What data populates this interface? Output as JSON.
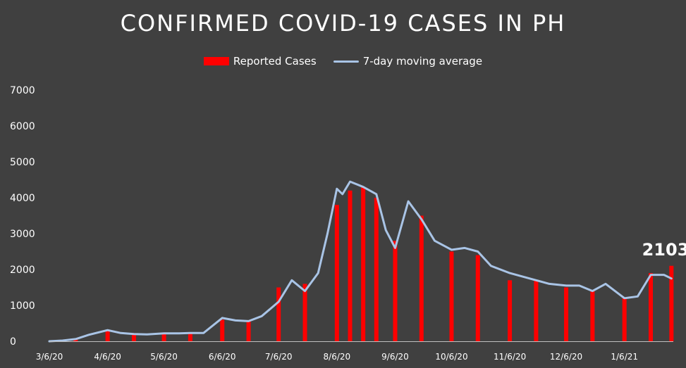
{
  "chart_data": {
    "type": "bar",
    "title": "CONFIRMED COVID-19 CASES IN PH",
    "xlabel": "",
    "ylabel": "",
    "ylim": [
      0,
      7000
    ],
    "yticks": [
      0,
      1000,
      2000,
      3000,
      4000,
      5000,
      6000,
      7000
    ],
    "xticks": [
      "3/6/20",
      "4/6/20",
      "5/6/20",
      "6/6/20",
      "7/6/20",
      "8/6/20",
      "9/6/20",
      "10/6/20",
      "11/6/20",
      "12/6/20",
      "1/6/21"
    ],
    "grid": false,
    "legend_position": "top-center",
    "colors": {
      "bars": "#ff0000",
      "line": "#a9c4e6",
      "background": "#404040"
    },
    "last_value_label": "2103",
    "series": [
      {
        "name": "Reported Cases",
        "type": "bar",
        "x": [
          "3/6/20",
          "3/20/20",
          "4/6/20",
          "4/20/20",
          "5/6/20",
          "5/20/20",
          "6/6/20",
          "6/20/20",
          "7/6/20",
          "7/20/20",
          "8/6/20",
          "8/13/20",
          "8/20/20",
          "8/27/20",
          "9/6/20",
          "9/20/20",
          "10/6/20",
          "10/20/20",
          "11/6/20",
          "11/20/20",
          "12/6/20",
          "12/20/20",
          "1/6/21",
          "1/20/21",
          "1/31/21"
        ],
        "values": [
          0,
          50,
          300,
          200,
          230,
          250,
          600,
          550,
          1500,
          1600,
          3800,
          4200,
          4300,
          4000,
          2800,
          3500,
          2500,
          2400,
          1700,
          1700,
          1500,
          1400,
          1200,
          1900,
          2103
        ]
      },
      {
        "name": "7-day moving average",
        "type": "line",
        "x": [
          "3/6/20",
          "3/13/20",
          "3/20/20",
          "3/27/20",
          "4/6/20",
          "4/13/20",
          "4/20/20",
          "4/27/20",
          "5/6/20",
          "5/13/20",
          "5/20/20",
          "5/27/20",
          "6/6/20",
          "6/13/20",
          "6/20/20",
          "6/27/20",
          "7/6/20",
          "7/13/20",
          "7/20/20",
          "7/27/20",
          "8/1/20",
          "8/6/20",
          "8/9/20",
          "8/13/20",
          "8/20/20",
          "8/27/20",
          "9/1/20",
          "9/6/20",
          "9/13/20",
          "9/20/20",
          "9/27/20",
          "10/6/20",
          "10/13/20",
          "10/20/20",
          "10/27/20",
          "11/6/20",
          "11/13/20",
          "11/20/20",
          "11/27/20",
          "12/6/20",
          "12/13/20",
          "12/20/20",
          "12/27/20",
          "1/6/21",
          "1/13/21",
          "1/20/21",
          "1/27/21",
          "1/31/21"
        ],
        "values": [
          0,
          20,
          60,
          180,
          310,
          230,
          200,
          190,
          220,
          220,
          230,
          230,
          650,
          580,
          560,
          700,
          1100,
          1700,
          1400,
          1900,
          3000,
          4250,
          4100,
          4450,
          4300,
          4100,
          3100,
          2600,
          3900,
          3400,
          2800,
          2550,
          2600,
          2500,
          2100,
          1900,
          1800,
          1700,
          1600,
          1550,
          1550,
          1400,
          1600,
          1200,
          1250,
          1850,
          1850,
          1750
        ]
      }
    ]
  }
}
